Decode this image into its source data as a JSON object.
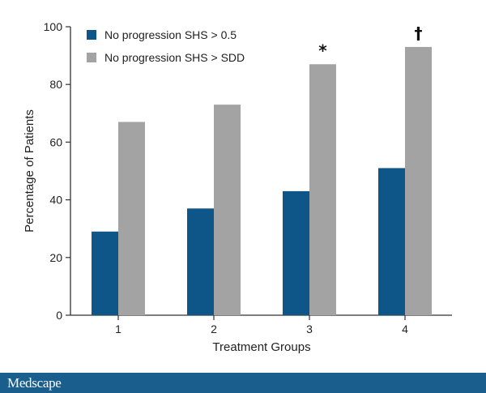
{
  "chart_data": {
    "type": "bar",
    "categories": [
      "1",
      "2",
      "3",
      "4"
    ],
    "series": [
      {
        "name": "No progression SHS > 0.5",
        "values": [
          29,
          37,
          43,
          51
        ],
        "color": "#0e5588"
      },
      {
        "name": "No progression SHS > SDD",
        "values": [
          67,
          73,
          87,
          93
        ],
        "color": "#a3a3a3"
      }
    ],
    "annotations": [
      {
        "category": "3",
        "series": 1,
        "text": "*"
      },
      {
        "category": "4",
        "series": 1,
        "text": "†"
      }
    ],
    "xlabel": "Treatment Groups",
    "ylabel": "Percentage of Patients",
    "ylim": [
      0,
      100
    ],
    "yticks": [
      0,
      20,
      40,
      60,
      80,
      100
    ],
    "grid": false,
    "legend_position": "top-left"
  },
  "footer": {
    "brand": "Medscape",
    "color": "#1a5e8e"
  }
}
